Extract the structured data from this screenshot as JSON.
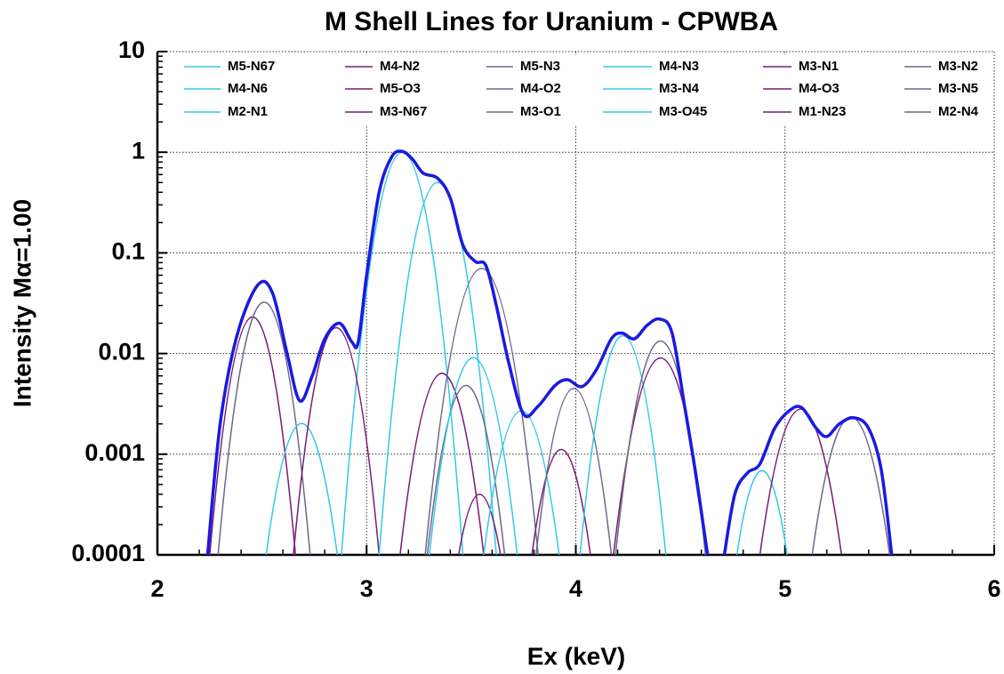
{
  "chart_data": {
    "type": "line",
    "title": "M Shell Lines for Uranium - CPWBA",
    "xlabel": "Ex (keV)",
    "ylabel": "Intensity Mα=1.00",
    "xlim": [
      2,
      6
    ],
    "xticks": [
      2,
      3,
      4,
      5,
      6
    ],
    "ylim": [
      0.0001,
      10
    ],
    "yticks": [
      0.0001,
      0.001,
      0.01,
      0.1,
      1,
      10
    ],
    "log_y": true,
    "grid": true,
    "legend": "top",
    "series": [
      {
        "name": "M5-N67",
        "color": "#33c8e8",
        "x": [
          2.88,
          3.17,
          3.46
        ],
        "values": [
          0.0001,
          1.0,
          0.0001
        ]
      },
      {
        "name": "M4-N2",
        "color": "#7a1a72",
        "x": [
          2.25,
          2.45,
          2.66
        ],
        "values": [
          0.0001,
          0.023,
          0.0001
        ]
      },
      {
        "name": "M5-N3",
        "color": "#6b6888",
        "x": [
          2.29,
          2.52,
          2.73
        ],
        "values": [
          0.0001,
          0.032,
          0.0001
        ]
      },
      {
        "name": "M4-N3",
        "color": "#33c8e8",
        "x": [
          2.52,
          2.68,
          2.86
        ],
        "values": [
          0.0001,
          0.002,
          0.0001
        ]
      },
      {
        "name": "M3-N1",
        "color": "#7a1a72",
        "x": [
          2.65,
          2.86,
          3.06
        ],
        "values": [
          0.0001,
          0.018,
          0.0001
        ]
      },
      {
        "name": "M3-N2",
        "color": "#6b6888",
        "x": [
          5.13,
          5.33,
          5.5
        ],
        "values": [
          0.0001,
          0.0023,
          0.0001
        ]
      },
      {
        "name": "M4-N6",
        "color": "#33c8e8",
        "x": [
          3.06,
          3.34,
          3.62
        ],
        "values": [
          0.0001,
          0.5,
          0.0001
        ]
      },
      {
        "name": "M5-O3",
        "color": "#7a1a72",
        "x": [
          3.16,
          3.35,
          3.56
        ],
        "values": [
          0.0001,
          0.0063,
          0.0001
        ]
      },
      {
        "name": "M4-O2",
        "color": "#6b6888",
        "x": [
          3.29,
          3.47,
          3.66
        ],
        "values": [
          0.0001,
          0.0048,
          0.0001
        ]
      },
      {
        "name": "M3-N4",
        "color": "#33c8e8",
        "x": [
          3.3,
          3.52,
          3.72
        ],
        "values": [
          0.0001,
          0.009,
          0.0001
        ]
      },
      {
        "name": "M4-O3",
        "color": "#7a1a72",
        "x": [
          3.44,
          3.54,
          3.64
        ],
        "values": [
          0.0001,
          0.0004,
          0.0001
        ]
      },
      {
        "name": "M3-N5",
        "color": "#6b6888",
        "x": [
          3.28,
          3.55,
          3.82
        ],
        "values": [
          0.0001,
          0.07,
          0.0001
        ]
      },
      {
        "name": "M2-N1",
        "color": "#33c8e8",
        "x": [
          3.56,
          3.74,
          3.92,
          null,
          4.77,
          4.87,
          5.01
        ],
        "values": [
          0.0001,
          0.0027,
          0.0001,
          null,
          0.0001,
          0.00065,
          0.0001
        ]
      },
      {
        "name": "M3-N67",
        "color": "#7a1a72",
        "x": [
          3.79,
          3.92,
          4.07
        ],
        "values": [
          0.0001,
          0.0011,
          0.0001
        ]
      },
      {
        "name": "M3-O1",
        "color": "#6b6888",
        "x": [
          3.81,
          3.99,
          4.17
        ],
        "values": [
          0.0001,
          0.0045,
          0.0001
        ]
      },
      {
        "name": "M3-O45",
        "color": "#33c8e8",
        "x": [
          4.02,
          4.23,
          4.43
        ],
        "values": [
          0.0001,
          0.015,
          0.0001
        ]
      },
      {
        "name": "M1-N23",
        "color": "#7a1a72",
        "x": [
          4.18,
          4.4,
          4.63,
          null,
          4.88,
          5.07,
          5.27
        ],
        "values": [
          0.0001,
          0.009,
          0.0001,
          null,
          0.0001,
          0.0028,
          0.0001
        ]
      },
      {
        "name": "M2-N4",
        "color": "#6b6888",
        "x": [
          4.19,
          4.42,
          4.62
        ],
        "values": [
          0.0001,
          0.013,
          0.0001
        ]
      }
    ],
    "total": {
      "color": "#1a1ae0",
      "x": [
        2.24,
        2.3,
        2.38,
        2.48,
        2.55,
        2.62,
        2.68,
        2.74,
        2.8,
        2.87,
        2.93,
        2.96,
        3.0,
        3.06,
        3.12,
        3.17,
        3.22,
        3.27,
        3.34,
        3.4,
        3.46,
        3.52,
        3.57,
        3.62,
        3.68,
        3.75,
        3.82,
        3.9,
        3.96,
        4.03,
        4.1,
        4.17,
        4.22,
        4.28,
        4.34,
        4.4,
        4.46,
        4.52,
        4.57,
        4.63,
        null,
        4.71,
        4.76,
        4.82,
        4.88,
        4.95,
        5.02,
        5.08,
        5.15,
        5.2,
        5.26,
        5.33,
        5.4,
        5.46,
        5.51
      ],
      "values": [
        0.0001,
        0.002,
        0.015,
        0.048,
        0.04,
        0.01,
        0.0034,
        0.006,
        0.014,
        0.02,
        0.013,
        0.013,
        0.06,
        0.4,
        0.9,
        1.02,
        0.85,
        0.62,
        0.55,
        0.35,
        0.12,
        0.082,
        0.075,
        0.03,
        0.008,
        0.0025,
        0.003,
        0.0048,
        0.0055,
        0.0047,
        0.007,
        0.014,
        0.016,
        0.014,
        0.019,
        0.022,
        0.016,
        0.003,
        0.0007,
        0.0001,
        null,
        0.0001,
        0.0004,
        0.00065,
        0.0008,
        0.0018,
        0.0027,
        0.0029,
        0.0018,
        0.0015,
        0.002,
        0.0023,
        0.0018,
        0.0007,
        0.0001
      ]
    }
  }
}
